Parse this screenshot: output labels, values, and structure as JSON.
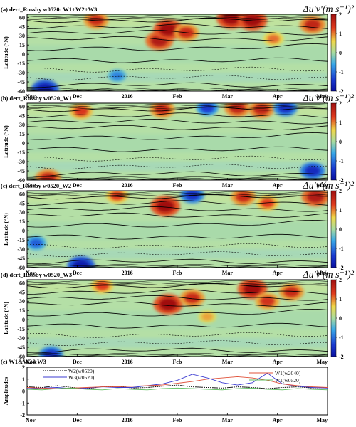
{
  "panels": [
    {
      "label": "(a) dert_Rossby w0520: W1+W2+W3",
      "colorbar_title": "Δu'v'(m s⁻¹)²"
    },
    {
      "label": "(b) dert_Rossby w0520_W1",
      "colorbar_title": "Δu'v'(m s⁻¹)²"
    },
    {
      "label": "(c) dert_Rossby w0520_W2",
      "colorbar_title": "Δu'v'(m s⁻¹)²"
    },
    {
      "label": "(d) dert_Rossby w0520_W3",
      "colorbar_title": "Δu'v'(m s⁻¹)²"
    }
  ],
  "ylabel_lat": "Latitude (°N)",
  "ylabel_amp": "Amplitudes",
  "panel_e_label": "(e) W1&W2&W3",
  "x_tick_labels": [
    "Nov",
    "Dec",
    "2016",
    "Feb",
    "Mar",
    "Apr",
    "May"
  ],
  "colors": {
    "W2_w0520": "#000000",
    "W3_w0520": "#3b3bd1",
    "W1_w2040": "#e0523a",
    "W1_w0520": "#5fbf5f"
  },
  "chart_data": [
    {
      "type": "heatmap",
      "title": "(a) dert_Rossby w0520: W1+W2+W3",
      "xlabel": "",
      "ylabel": "Latitude (°N)",
      "x_ticks": [
        "Nov",
        "Dec",
        "2016",
        "Feb",
        "Mar",
        "Apr",
        "May"
      ],
      "y_ticks": [
        60,
        45,
        30,
        15,
        0,
        -15,
        -30,
        -45,
        -60
      ],
      "ylim": [
        -60,
        65
      ],
      "colorbar": {
        "ticks": [
          2,
          1,
          0,
          -1,
          -2
        ],
        "range": [
          -2,
          2
        ],
        "colors": [
          "#1a2ad0",
          "#39a8e8",
          "#a8dca0",
          "#f0d84a",
          "#e04020",
          "#b01010"
        ]
      },
      "features": [
        {
          "t": 0.06,
          "lat": -57,
          "value": -1.8
        },
        {
          "t": 0.23,
          "lat": 55,
          "value": 1.5
        },
        {
          "t": 0.44,
          "lat": 22,
          "value": 1.8
        },
        {
          "t": 0.47,
          "lat": 40,
          "value": 2.0
        },
        {
          "t": 0.53,
          "lat": 35,
          "value": 1.5
        },
        {
          "t": 0.68,
          "lat": 58,
          "value": 2.0
        },
        {
          "t": 0.75,
          "lat": 55,
          "value": 2.0
        },
        {
          "t": 0.82,
          "lat": 25,
          "value": 1.0
        },
        {
          "t": 0.95,
          "lat": 48,
          "value": 1.6
        },
        {
          "t": 0.3,
          "lat": -35,
          "value": -0.8
        }
      ]
    },
    {
      "type": "heatmap",
      "title": "(b) dert_Rossby w0520_W1",
      "xlabel": "",
      "ylabel": "Latitude (°N)",
      "x_ticks": [
        "Nov",
        "Dec",
        "2016",
        "Feb",
        "Mar",
        "Apr",
        "May"
      ],
      "y_ticks": [
        60,
        45,
        30,
        15,
        0,
        -15,
        -30,
        -45,
        -60
      ],
      "ylim": [
        -60,
        65
      ],
      "colorbar": {
        "ticks": [
          2,
          1,
          0,
          -1,
          -2
        ],
        "range": [
          -2,
          2
        ]
      },
      "features": [
        {
          "t": 0.07,
          "lat": -57,
          "value": 1.6
        },
        {
          "t": 0.18,
          "lat": 52,
          "value": 1.3
        },
        {
          "t": 0.45,
          "lat": 55,
          "value": 1.5
        },
        {
          "t": 0.6,
          "lat": 57,
          "value": -1.2
        },
        {
          "t": 0.7,
          "lat": 57,
          "value": 1.6
        },
        {
          "t": 0.78,
          "lat": 55,
          "value": 1.6
        },
        {
          "t": 0.86,
          "lat": 57,
          "value": -1.4
        },
        {
          "t": 0.95,
          "lat": -45,
          "value": -1.5
        }
      ]
    },
    {
      "type": "heatmap",
      "title": "(c) dert_Rossby w0520_W2",
      "xlabel": "",
      "ylabel": "Latitude (°N)",
      "x_ticks": [
        "Nov",
        "Dec",
        "2016",
        "Feb",
        "Mar",
        "Apr",
        "May"
      ],
      "y_ticks": [
        60,
        45,
        30,
        15,
        0,
        -15,
        -30,
        -45,
        -60
      ],
      "ylim": [
        -60,
        65
      ],
      "colorbar": {
        "ticks": [
          2,
          1,
          0,
          -1,
          -2
        ],
        "range": [
          -2,
          2
        ]
      },
      "features": [
        {
          "t": 0.18,
          "lat": -57,
          "value": -1.8
        },
        {
          "t": 0.03,
          "lat": -20,
          "value": -1.0
        },
        {
          "t": 0.3,
          "lat": 57,
          "value": 1.2
        },
        {
          "t": 0.46,
          "lat": 40,
          "value": 2.0
        },
        {
          "t": 0.55,
          "lat": 58,
          "value": -1.4
        },
        {
          "t": 0.72,
          "lat": 55,
          "value": 1.5
        },
        {
          "t": 0.8,
          "lat": 45,
          "value": 1.2
        },
        {
          "t": 0.96,
          "lat": 55,
          "value": 1.8
        }
      ]
    },
    {
      "type": "heatmap",
      "title": "(d) dert_Rossby w0520_W3",
      "xlabel": "",
      "ylabel": "Latitude (°N)",
      "x_ticks": [
        "Nov",
        "Dec",
        "2016",
        "Feb",
        "Mar",
        "Apr",
        "May"
      ],
      "y_ticks": [
        60,
        45,
        30,
        15,
        0,
        -15,
        -30,
        -45,
        -60
      ],
      "ylim": [
        -60,
        65
      ],
      "colorbar": {
        "ticks": [
          2,
          1,
          0,
          -1,
          -2
        ],
        "range": [
          -2,
          2
        ]
      },
      "features": [
        {
          "t": 0.08,
          "lat": -57,
          "value": -1.4
        },
        {
          "t": 0.25,
          "lat": 55,
          "value": 1.2
        },
        {
          "t": 0.47,
          "lat": 25,
          "value": 2.0
        },
        {
          "t": 0.55,
          "lat": 35,
          "value": 1.5
        },
        {
          "t": 0.75,
          "lat": 50,
          "value": 2.0
        },
        {
          "t": 0.8,
          "lat": 30,
          "value": 1.4
        },
        {
          "t": 0.88,
          "lat": 45,
          "value": 1.5
        },
        {
          "t": 0.6,
          "lat": 5,
          "value": 0.8
        }
      ]
    },
    {
      "type": "line",
      "title": "(e) W1&W2&W3",
      "xlabel": "",
      "ylabel": "Amplitudes",
      "x_ticks": [
        "Nov",
        "Dec",
        "2016",
        "Feb",
        "Mar",
        "Apr",
        "May"
      ],
      "y_ticks": [
        2,
        1,
        0,
        -1,
        -2
      ],
      "ylim": [
        -2,
        2
      ],
      "x": [
        0,
        0.05,
        0.1,
        0.15,
        0.2,
        0.25,
        0.3,
        0.35,
        0.4,
        0.45,
        0.5,
        0.55,
        0.6,
        0.65,
        0.7,
        0.75,
        0.8,
        0.85,
        0.9,
        0.95,
        1.0
      ],
      "series": [
        {
          "name": "W2(w0520)",
          "values": [
            0.35,
            0.3,
            0.45,
            0.3,
            0.2,
            0.35,
            0.4,
            0.25,
            0.3,
            0.4,
            0.5,
            0.35,
            0.3,
            0.25,
            0.35,
            0.3,
            0.2,
            0.3,
            0.35,
            0.25,
            0.3
          ]
        },
        {
          "name": "W3(w0520)",
          "values": [
            0.2,
            0.25,
            0.3,
            0.2,
            0.25,
            0.35,
            0.3,
            0.3,
            0.45,
            0.6,
            0.9,
            1.4,
            1.1,
            0.7,
            0.5,
            0.7,
            1.5,
            0.6,
            0.4,
            0.3,
            0.25
          ]
        },
        {
          "name": "W1(w2040)",
          "values": [
            0.3,
            0.25,
            0.2,
            0.25,
            0.3,
            0.35,
            0.35,
            0.4,
            0.45,
            0.5,
            0.65,
            0.8,
            1.0,
            1.1,
            1.2,
            1.1,
            0.9,
            0.6,
            0.45,
            0.35,
            0.3
          ]
        },
        {
          "name": "W1(w0520)",
          "values": [
            0.15,
            0.1,
            0.2,
            0.25,
            0.15,
            0.1,
            0.2,
            0.15,
            0.1,
            0.2,
            0.25,
            0.2,
            0.15,
            0.1,
            0.2,
            0.25,
            0.15,
            0.1,
            0.2,
            0.15,
            0.1
          ]
        }
      ]
    }
  ]
}
